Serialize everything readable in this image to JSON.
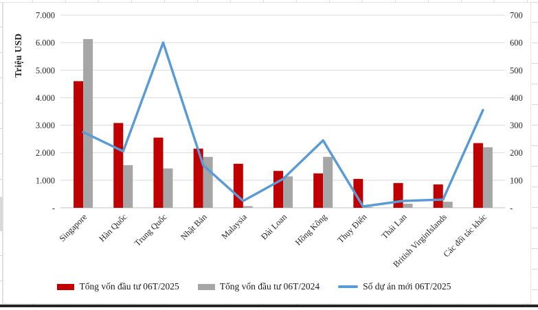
{
  "sheet": {
    "description": "embedded chart over spreadsheet grid"
  },
  "chart_data": {
    "type": "combo-bar-line",
    "title": "",
    "ylabel_left": "Triệu USD",
    "ylabel_right": "",
    "categories": [
      "Singapore",
      "Hàn Quốc",
      "Trung Quốc",
      "Nhật Bản",
      "Malaysia",
      "Đài Loan",
      "Hồng Kông",
      "Thụy Điển",
      "Thái Lan",
      "British VirginIslands",
      "Các đối tác khác"
    ],
    "series": [
      {
        "name": "Tổng vốn đầu tư 06T/2025",
        "type": "bar",
        "axis": "left",
        "color": "#C00000",
        "values": [
          4600,
          3080,
          2550,
          2150,
          1600,
          1340,
          1250,
          1050,
          900,
          850,
          2350
        ]
      },
      {
        "name": "Tổng vốn đầu tư 06T/2024",
        "type": "bar",
        "axis": "left",
        "color": "#A6A6A6",
        "values": [
          6130,
          1550,
          1430,
          1850,
          60,
          1140,
          1850,
          30,
          150,
          220,
          2200
        ]
      },
      {
        "name": "Số dự án mới 06T/2025",
        "type": "line",
        "axis": "right",
        "color": "#5B9BD5",
        "values": [
          275,
          205,
          600,
          155,
          25,
          105,
          245,
          5,
          25,
          30,
          355
        ]
      }
    ],
    "axis_left": {
      "min": 0,
      "max": 7000,
      "tick_step": 1000,
      "tick_labels_top_down": [
        "7.000",
        "6.000",
        "5.000",
        "4.000",
        "3.000",
        "2.000",
        "1.000",
        "-"
      ]
    },
    "axis_right": {
      "min": 0,
      "max": 700,
      "tick_step": 100,
      "tick_labels_top_down": [
        "700",
        "600",
        "500",
        "400",
        "300",
        "200",
        "100",
        "-"
      ]
    },
    "grid": true,
    "legend_position": "bottom"
  },
  "colors": {
    "gridline": "#D9D9D9",
    "axis_line": "#BFBFBF",
    "tick_text": "#262626",
    "bar_red": "#C00000",
    "bar_gray": "#A6A6A6",
    "line_blue": "#5B9BD5",
    "dark_row": "#262626"
  }
}
